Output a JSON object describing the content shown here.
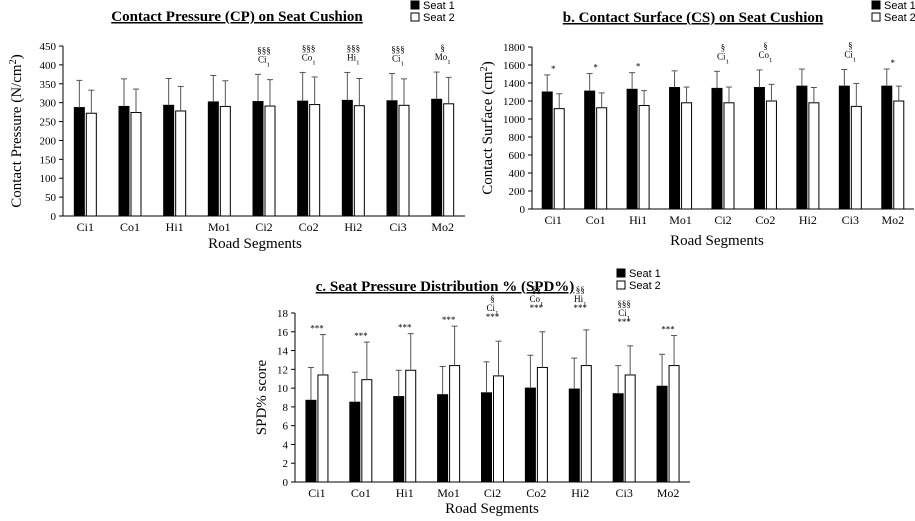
{
  "chart_data": [
    {
      "type": "bar",
      "title": "Contact Pressure (CP) on Seat Cushion",
      "xlabel": "Road Segments",
      "ylabel": "Contact Pressure (N/cm²)",
      "ylim": [
        0,
        450
      ],
      "yticks": [
        0,
        50,
        100,
        150,
        200,
        250,
        300,
        350,
        400,
        450
      ],
      "categories": [
        "Ci1",
        "Co1",
        "Hi1",
        "Mo1",
        "Ci2",
        "Co2",
        "Hi2",
        "Ci3",
        "Mo2"
      ],
      "series": [
        {
          "name": "Seat 1",
          "color": "#000000",
          "values": [
            287,
            290,
            293,
            302,
            303,
            304,
            306,
            305,
            309
          ],
          "errors": [
            72,
            73,
            71,
            70,
            72,
            76,
            74,
            72,
            72
          ]
        },
        {
          "name": "Seat 2",
          "color": "#ffffff",
          "values": [
            272,
            274,
            278,
            290,
            291,
            295,
            292,
            293,
            297
          ],
          "errors": [
            61,
            62,
            65,
            68,
            70,
            73,
            72,
            70,
            70
          ]
        }
      ],
      "annotations": [
        {
          "category": "Ci2",
          "lines": [
            "§§§",
            "Ci1"
          ]
        },
        {
          "category": "Co2",
          "lines": [
            "§§§",
            "Co1"
          ]
        },
        {
          "category": "Hi2",
          "lines": [
            "§§§",
            "Hi1"
          ]
        },
        {
          "category": "Ci3",
          "lines": [
            "§§§",
            "Ci1"
          ]
        },
        {
          "category": "Mo2",
          "lines": [
            "§",
            "Mo1"
          ]
        }
      ],
      "legend": "top-right",
      "grid": false
    },
    {
      "type": "bar",
      "title": "b. Contact Surface (CS) on Seat Cushion",
      "xlabel": "Road Segments",
      "ylabel": "Contact Surface (cm²)",
      "ylim": [
        0,
        1800
      ],
      "yticks": [
        0,
        200,
        400,
        600,
        800,
        1000,
        1200,
        1400,
        1600,
        1800
      ],
      "categories": [
        "Ci1",
        "Co1",
        "Hi1",
        "Mo1",
        "Ci2",
        "Co2",
        "Hi2",
        "Ci3",
        "Mo2"
      ],
      "series": [
        {
          "name": "Seat 1",
          "color": "#000000",
          "values": [
            1300,
            1310,
            1330,
            1350,
            1340,
            1350,
            1365,
            1365,
            1365
          ],
          "errors": [
            190,
            195,
            185,
            185,
            190,
            195,
            190,
            185,
            190
          ]
        },
        {
          "name": "Seat 2",
          "color": "#ffffff",
          "values": [
            1115,
            1125,
            1150,
            1180,
            1180,
            1200,
            1180,
            1140,
            1200
          ],
          "errors": [
            165,
            165,
            165,
            175,
            175,
            185,
            170,
            255,
            165
          ]
        }
      ],
      "annotations": [
        {
          "category": "Ci1",
          "lines": [
            "*"
          ]
        },
        {
          "category": "Co1",
          "lines": [
            "*"
          ]
        },
        {
          "category": "Hi1",
          "lines": [
            "*"
          ]
        },
        {
          "category": "Ci2",
          "lines": [
            "§",
            "Ci1"
          ]
        },
        {
          "category": "Co2",
          "lines": [
            "§",
            "Co1"
          ]
        },
        {
          "category": "Ci3",
          "lines": [
            "§",
            "Ci1"
          ]
        },
        {
          "category": "Mo2",
          "lines": [
            "*"
          ]
        }
      ],
      "legend": "top-right",
      "grid": false
    },
    {
      "type": "bar",
      "title": "c. Seat Pressure Distribution % (SPD%)",
      "xlabel": "Road Segments",
      "ylabel": "SPD% score",
      "ylim": [
        0,
        18
      ],
      "yticks": [
        0,
        2,
        4,
        6,
        8,
        10,
        12,
        14,
        16,
        18
      ],
      "categories": [
        "Ci1",
        "Co1",
        "Hi1",
        "Mo1",
        "Ci2",
        "Co2",
        "Hi2",
        "Ci3",
        "Mo2"
      ],
      "series": [
        {
          "name": "Seat 1",
          "color": "#000000",
          "values": [
            8.7,
            8.5,
            9.1,
            9.3,
            9.5,
            10.0,
            9.9,
            9.4,
            10.2
          ],
          "errors": [
            3.5,
            3.2,
            2.8,
            3.0,
            3.3,
            3.5,
            3.3,
            3.0,
            3.4
          ]
        },
        {
          "name": "Seat 2",
          "color": "#ffffff",
          "values": [
            11.4,
            10.9,
            11.9,
            12.4,
            11.3,
            12.2,
            12.4,
            11.4,
            12.4
          ],
          "errors": [
            4.3,
            4.0,
            3.9,
            4.2,
            3.7,
            3.8,
            3.8,
            3.1,
            3.2
          ]
        }
      ],
      "annotations": [
        {
          "category": "Ci1",
          "lines": [
            "***"
          ]
        },
        {
          "category": "Co1",
          "lines": [
            "***"
          ]
        },
        {
          "category": "Hi1",
          "lines": [
            "***"
          ]
        },
        {
          "category": "Mo1",
          "lines": [
            "***"
          ]
        },
        {
          "category": "Ci2",
          "lines": [
            "§",
            "Ci1",
            "***"
          ]
        },
        {
          "category": "Co2",
          "lines": [
            "§§",
            "Co1",
            "***"
          ]
        },
        {
          "category": "Hi2",
          "lines": [
            "§§",
            "Hi1",
            "***"
          ]
        },
        {
          "category": "Ci3",
          "lines": [
            "§§§",
            "Ci1",
            "***"
          ]
        },
        {
          "category": "Mo2",
          "lines": [
            "***"
          ]
        }
      ],
      "legend": "top-right",
      "grid": false
    }
  ]
}
